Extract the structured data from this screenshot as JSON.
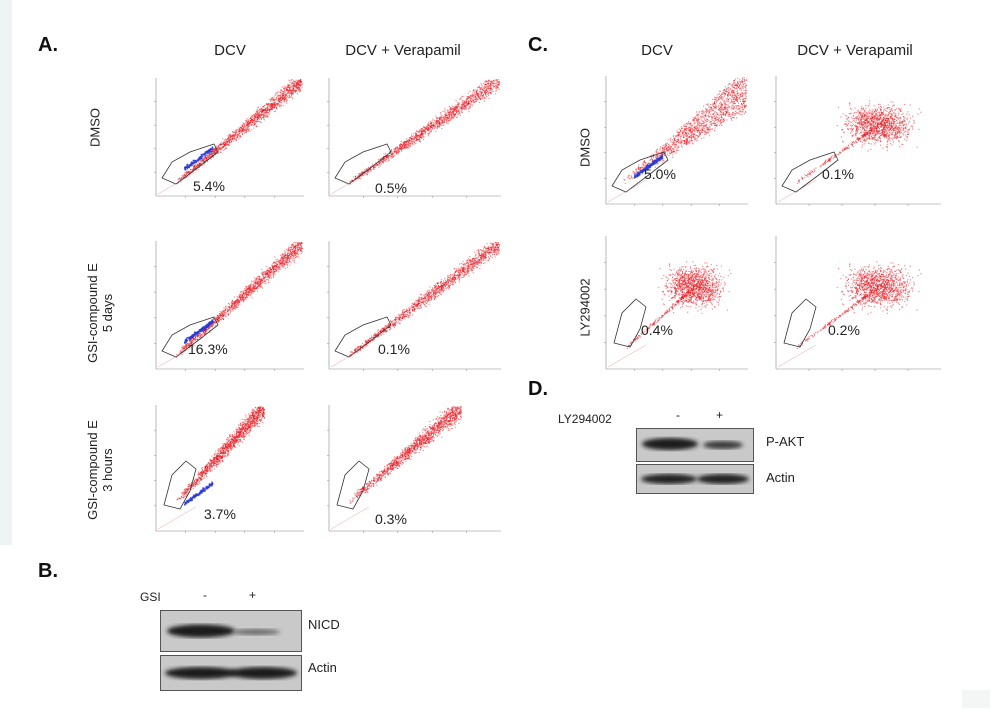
{
  "panels": {
    "A": {
      "letter": "A.",
      "columns": [
        "DCV",
        "DCV + Verapamil"
      ],
      "rows": [
        "DMSO",
        "GSI-compound E 5 days",
        "GSI-compound E 3 hours"
      ],
      "rows_line1": [
        "DMSO",
        "GSI-compound E",
        "GSI-compound E"
      ],
      "rows_line2": [
        "",
        "5 days",
        "3 hours"
      ],
      "percentages": [
        [
          "5.4%",
          "0.5%"
        ],
        [
          "16.3%",
          "0.1%"
        ],
        [
          "3.7%",
          "0.3%"
        ]
      ]
    },
    "B": {
      "letter": "B.",
      "treatment_label": "GSI",
      "lane_signs": [
        "-",
        "+"
      ],
      "bands": [
        "NICD",
        "Actin"
      ]
    },
    "C": {
      "letter": "C.",
      "columns": [
        "DCV",
        "DCV + Verapamil"
      ],
      "rows": [
        "DMSO",
        "LY294002"
      ],
      "percentages": [
        [
          "5.0%",
          "0.1%"
        ],
        [
          "0.4%",
          "0.2%"
        ]
      ]
    },
    "D": {
      "letter": "D.",
      "treatment_label": "LY294002",
      "lane_signs": [
        "-",
        "+"
      ],
      "bands": [
        "P-AKT",
        "Actin"
      ]
    }
  },
  "colors": {
    "dots": "#e8141c",
    "side_population": "#2a3bd6",
    "gate": "#333333"
  }
}
